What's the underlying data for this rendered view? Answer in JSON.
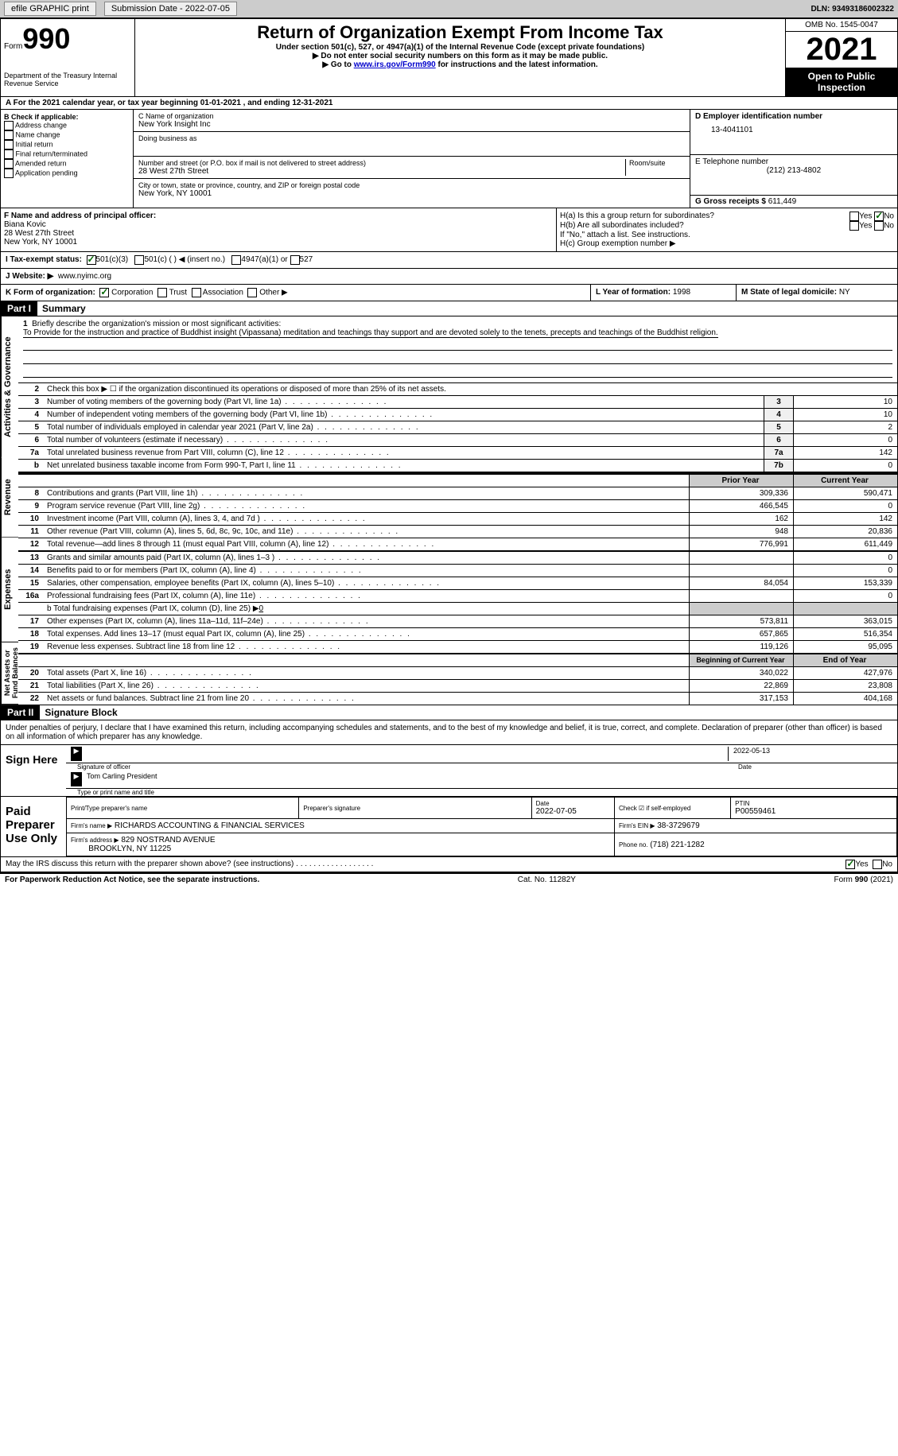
{
  "toolbar": {
    "efile": "efile GRAPHIC print",
    "sub_date_label": "Submission Date - 2022-07-05",
    "dln_label": "DLN:",
    "dln": "93493186002322"
  },
  "header": {
    "form_label": "Form",
    "form_num": "990",
    "dept": "Department of the Treasury Internal Revenue Service",
    "title": "Return of Organization Exempt From Income Tax",
    "sub1": "Under section 501(c), 527, or 4947(a)(1) of the Internal Revenue Code (except private foundations)",
    "sub2": "▶ Do not enter social security numbers on this form as it may be made public.",
    "sub3_pre": "▶ Go to ",
    "sub3_link": "www.irs.gov/Form990",
    "sub3_post": " for instructions and the latest information.",
    "omb": "OMB No. 1545-0047",
    "year": "2021",
    "open": "Open to Public Inspection"
  },
  "section_a": "A For the 2021 calendar year, or tax year beginning 01-01-2021   , and ending 12-31-2021",
  "col_b": {
    "label": "B Check if applicable:",
    "opts": [
      "Address change",
      "Name change",
      "Initial return",
      "Final return/terminated",
      "Amended return",
      "Application pending"
    ]
  },
  "col_c": {
    "name_label": "C Name of organization",
    "name": "New York Insight Inc",
    "dba_label": "Doing business as",
    "addr_label": "Number and street (or P.O. box if mail is not delivered to street address)",
    "room_label": "Room/suite",
    "addr": "28 West 27th Street",
    "city_label": "City or town, state or province, country, and ZIP or foreign postal code",
    "city": "New York, NY  10001"
  },
  "col_d": {
    "ein_label": "D Employer identification number",
    "ein": "13-4041101",
    "tel_label": "E Telephone number",
    "tel": "(212) 213-4802",
    "gross_label": "G Gross receipts $",
    "gross": "611,449"
  },
  "row_f": {
    "label": "F  Name and address of principal officer:",
    "name": "Biana Kovic",
    "addr1": "28 West 27th Street",
    "addr2": "New York, NY  10001"
  },
  "row_h": {
    "ha": "H(a)  Is this a group return for subordinates?",
    "hb": "H(b)  Are all subordinates included?",
    "hb_note": "If \"No,\" attach a list. See instructions.",
    "hc": "H(c)  Group exemption number ▶",
    "yes": "Yes",
    "no": "No"
  },
  "row_i": {
    "label": "I  Tax-exempt status:",
    "o1": "501(c)(3)",
    "o2": "501(c) (   ) ◀ (insert no.)",
    "o3": "4947(a)(1) or",
    "o4": "527"
  },
  "row_j": {
    "label": "J  Website: ▶",
    "val": "www.nyimc.org"
  },
  "row_k": {
    "label": "K Form of organization:",
    "corp": "Corporation",
    "trust": "Trust",
    "assoc": "Association",
    "other": "Other ▶",
    "l_label": "L Year of formation:",
    "l_val": "1998",
    "m_label": "M State of legal domicile:",
    "m_val": "NY"
  },
  "parts": {
    "p1": "Part I",
    "p1_title": "Summary",
    "p2": "Part II",
    "p2_title": "Signature Block"
  },
  "vert": {
    "act": "Activities & Governance",
    "rev": "Revenue",
    "exp": "Expenses",
    "net": "Net Assets or Fund Balances"
  },
  "summary": {
    "l1_label": "Briefly describe the organization's mission or most significant activities:",
    "l1_text": "To Provide for the instruction and practice of Buddhist insight (Vipassana) meditation and teachings thay support and are devoted solely to the tenets, precepts and teachings of the Buddhist religion.",
    "l2": "Check this box ▶ ☐  if the organization discontinued its operations or disposed of more than 25% of its net assets.",
    "rows_gov": [
      {
        "n": "3",
        "label": "Number of voting members of the governing body (Part VI, line 1a)",
        "box": "3",
        "val": "10"
      },
      {
        "n": "4",
        "label": "Number of independent voting members of the governing body (Part VI, line 1b)",
        "box": "4",
        "val": "10"
      },
      {
        "n": "5",
        "label": "Total number of individuals employed in calendar year 2021 (Part V, line 2a)",
        "box": "5",
        "val": "2"
      },
      {
        "n": "6",
        "label": "Total number of volunteers (estimate if necessary)",
        "box": "6",
        "val": "0"
      },
      {
        "n": "7a",
        "label": "Total unrelated business revenue from Part VIII, column (C), line 12",
        "box": "7a",
        "val": "142"
      },
      {
        "n": "b",
        "label": "Net unrelated business taxable income from Form 990-T, Part I, line 11",
        "box": "7b",
        "val": "0"
      }
    ],
    "prior_label": "Prior Year",
    "current_label": "Current Year",
    "rows_rev": [
      {
        "n": "8",
        "label": "Contributions and grants (Part VIII, line 1h)",
        "py": "309,336",
        "cy": "590,471"
      },
      {
        "n": "9",
        "label": "Program service revenue (Part VIII, line 2g)",
        "py": "466,545",
        "cy": "0"
      },
      {
        "n": "10",
        "label": "Investment income (Part VIII, column (A), lines 3, 4, and 7d )",
        "py": "162",
        "cy": "142"
      },
      {
        "n": "11",
        "label": "Other revenue (Part VIII, column (A), lines 5, 6d, 8c, 9c, 10c, and 11e)",
        "py": "948",
        "cy": "20,836"
      },
      {
        "n": "12",
        "label": "Total revenue—add lines 8 through 11 (must equal Part VIII, column (A), line 12)",
        "py": "776,991",
        "cy": "611,449"
      }
    ],
    "rows_exp": [
      {
        "n": "13",
        "label": "Grants and similar amounts paid (Part IX, column (A), lines 1–3 )",
        "py": "",
        "cy": "0"
      },
      {
        "n": "14",
        "label": "Benefits paid to or for members (Part IX, column (A), line 4)",
        "py": "",
        "cy": "0"
      },
      {
        "n": "15",
        "label": "Salaries, other compensation, employee benefits (Part IX, column (A), lines 5–10)",
        "py": "84,054",
        "cy": "153,339"
      },
      {
        "n": "16a",
        "label": "Professional fundraising fees (Part IX, column (A), line 11e)",
        "py": "",
        "cy": "0"
      }
    ],
    "l16b_pre": "b  Total fundraising expenses (Part IX, column (D), line 25) ▶",
    "l16b_val": "0",
    "rows_exp2": [
      {
        "n": "17",
        "label": "Other expenses (Part IX, column (A), lines 11a–11d, 11f–24e)",
        "py": "573,811",
        "cy": "363,015"
      },
      {
        "n": "18",
        "label": "Total expenses. Add lines 13–17 (must equal Part IX, column (A), line 25)",
        "py": "657,865",
        "cy": "516,354"
      },
      {
        "n": "19",
        "label": "Revenue less expenses. Subtract line 18 from line 12",
        "py": "119,126",
        "cy": "95,095"
      }
    ],
    "boy_label": "Beginning of Current Year",
    "eoy_label": "End of Year",
    "rows_net": [
      {
        "n": "20",
        "label": "Total assets (Part X, line 16)",
        "py": "340,022",
        "cy": "427,976"
      },
      {
        "n": "21",
        "label": "Total liabilities (Part X, line 26)",
        "py": "22,869",
        "cy": "23,808"
      },
      {
        "n": "22",
        "label": "Net assets or fund balances. Subtract line 21 from line 20",
        "py": "317,153",
        "cy": "404,168"
      }
    ]
  },
  "sig_block": {
    "text": "Under penalties of perjury, I declare that I have examined this return, including accompanying schedules and statements, and to the best of my knowledge and belief, it is true, correct, and complete. Declaration of preparer (other than officer) is based on all information of which preparer has any knowledge.",
    "sign_here": "Sign Here",
    "sig_officer": "Signature of officer",
    "date": "Date",
    "sig_date": "2022-05-13",
    "name_title": "Tom Carling  President",
    "name_title_label": "Type or print name and title",
    "paid": "Paid Preparer Use Only",
    "print_name": "Print/Type preparer's name",
    "prep_sig": "Preparer's signature",
    "prep_date_label": "Date",
    "prep_date": "2022-07-05",
    "check_if": "Check ☑ if self-employed",
    "ptin_label": "PTIN",
    "ptin": "P00559461",
    "firm_name_label": "Firm's name    ▶",
    "firm_name": "RICHARDS ACCOUNTING & FINANCIAL SERVICES",
    "firm_ein_label": "Firm's EIN ▶",
    "firm_ein": "38-3729679",
    "firm_addr_label": "Firm's address ▶",
    "firm_addr1": "829 NOSTRAND AVENUE",
    "firm_addr2": "BROOKLYN, NY  11225",
    "phone_label": "Phone no.",
    "phone": "(718) 221-1282",
    "may_irs": "May the IRS discuss this return with the preparer shown above? (see instructions)",
    "paperwork": "For Paperwork Reduction Act Notice, see the separate instructions.",
    "cat": "Cat. No. 11282Y",
    "form_footer": "Form 990 (2021)"
  }
}
